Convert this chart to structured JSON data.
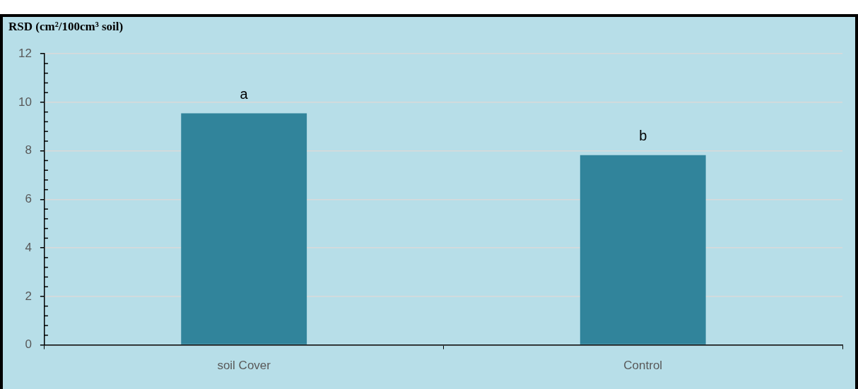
{
  "chart_data": {
    "type": "bar",
    "ylabel": "RSD (cm²/100cm³ soil)",
    "categories": [
      "soil Cover",
      "Control"
    ],
    "values": [
      9.55,
      7.82
    ],
    "color": "#31849b",
    "ylim": [
      0,
      12
    ],
    "yticks": [
      0,
      2,
      4,
      6,
      8,
      10,
      12
    ],
    "grid": "y",
    "annotations": [
      {
        "text": "a",
        "x": "soil Cover",
        "y": 9.55
      },
      {
        "text": "b",
        "x": "Control",
        "y": 7.82
      }
    ]
  }
}
